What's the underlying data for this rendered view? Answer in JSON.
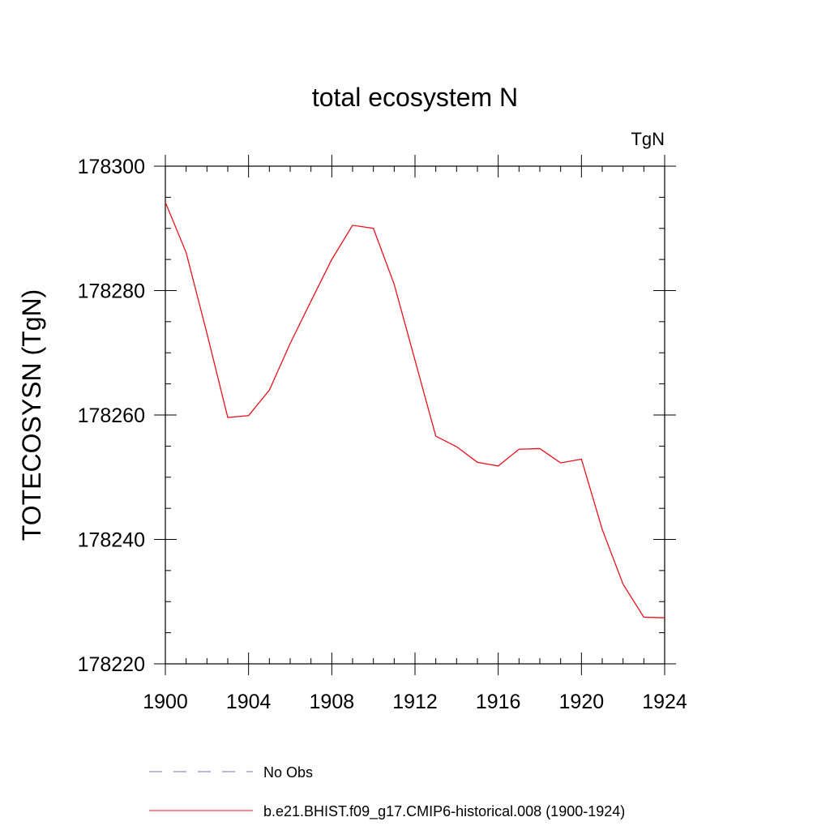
{
  "chart_data": {
    "type": "line",
    "title": "total ecosystem N",
    "units_label": "TgN",
    "xlabel": "",
    "ylabel": "TOTECOSYSN  (TgN)",
    "xlim": [
      1900,
      1924
    ],
    "ylim": [
      178220,
      178300
    ],
    "x_ticks": [
      "1900",
      "1904",
      "1908",
      "1912",
      "1916",
      "1920",
      "1924"
    ],
    "y_ticks": [
      "178220",
      "178240",
      "178260",
      "178280",
      "178300"
    ],
    "grid": false,
    "legend_position": "bottom",
    "series": [
      {
        "name": "No Obs",
        "color": "#7b6fc0",
        "style": "dashed",
        "x": [],
        "values": []
      },
      {
        "name": "b.e21.BHIST.f09_g17.CMIP6-historical.008 (1900-1924)",
        "color": "#e8131b",
        "style": "solid",
        "x": [
          1900,
          1901,
          1902,
          1903,
          1904,
          1905,
          1906,
          1907,
          1908,
          1909,
          1910,
          1911,
          1912,
          1913,
          1914,
          1915,
          1916,
          1917,
          1918,
          1919,
          1920,
          1921,
          1922,
          1923,
          1924
        ],
        "values": [
          178294.2,
          178286.1,
          178273.1,
          178259.6,
          178259.9,
          178264.0,
          178271.5,
          178278.3,
          178285.0,
          178290.5,
          178290.0,
          178281.0,
          178268.8,
          178256.6,
          178254.9,
          178252.4,
          178251.8,
          178254.5,
          178254.6,
          178252.3,
          178252.9,
          178241.6,
          178232.8,
          178227.5,
          178227.4
        ]
      }
    ]
  }
}
